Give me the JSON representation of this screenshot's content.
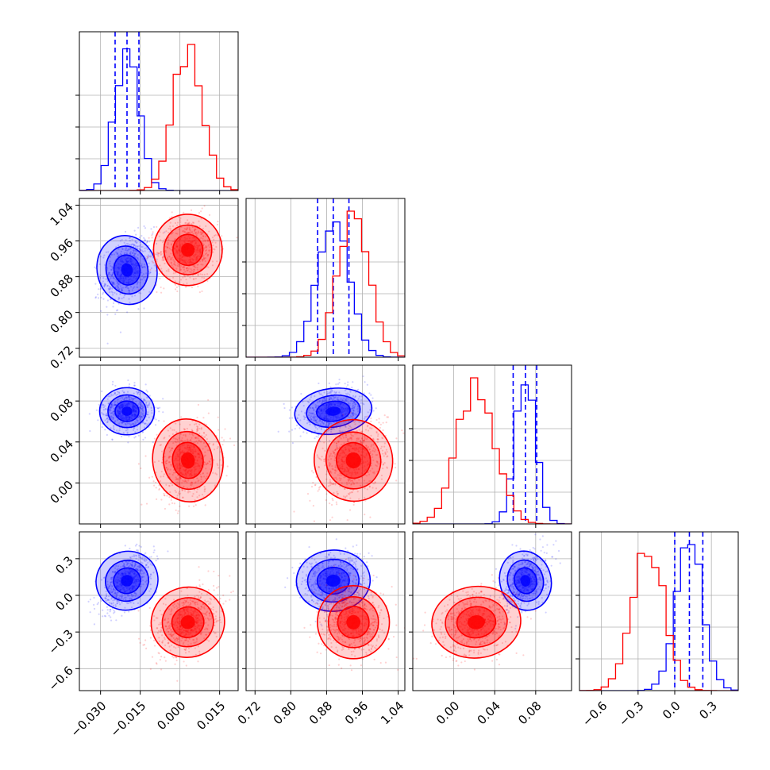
{
  "chart_data": {
    "type": "corner",
    "description_of_layout": "lower-triangular matrix of 4 parameters; diagonal panels are 1D histograms, off-diagonal panels are 2D scatter + filled density contours",
    "grid": true,
    "series": [
      {
        "name": "",
        "color": "#0000ff",
        "means": [
          -0.02,
          0.895,
          0.07,
          0.12
        ],
        "sigmas": [
          0.0045,
          0.035,
          0.01,
          0.11
        ],
        "correlations": {
          "0-1": 0.35,
          "0-2": 0.0,
          "0-3": 0.55,
          "1-2": 0.3,
          "1-3": 0.1,
          "2-3": 0.35
        },
        "quantile_lines": [
          [
            -0.0245,
            -0.02,
            -0.0155
          ],
          [
            0.86,
            0.895,
            0.93
          ],
          [
            0.058,
            0.07,
            0.081
          ],
          [
            0.0,
            0.12,
            0.23
          ]
        ]
      },
      {
        "name": "",
        "color": "#ff0000",
        "means": [
          0.003,
          0.94,
          0.022,
          -0.22
        ],
        "sigmas": [
          0.0055,
          0.035,
          0.018,
          0.13
        ],
        "correlations": {
          "0-1": 0.1,
          "0-2": 0.2,
          "0-3": 0.4,
          "1-2": 0.35,
          "1-3": 0.0,
          "2-3": 0.2
        },
        "quantile_lines": null
      }
    ],
    "axes": [
      {
        "range": [
          -0.038,
          0.022
        ],
        "ticks": [
          -0.03,
          -0.015,
          0.0,
          0.015
        ],
        "tick_labels": [
          "−0.030",
          "−0.015",
          "0.000",
          "0.015"
        ]
      },
      {
        "range": [
          0.7,
          1.055
        ],
        "ticks": [
          0.72,
          0.8,
          0.88,
          0.96,
          1.04
        ],
        "tick_labels": [
          "0.72",
          "0.80",
          "0.88",
          "0.96",
          "1.04"
        ]
      },
      {
        "range": [
          -0.04,
          0.115
        ],
        "ticks": [
          0.0,
          0.04,
          0.08
        ],
        "tick_labels": [
          "0.00",
          "0.04",
          "0.08"
        ]
      },
      {
        "range": [
          -0.78,
          0.52
        ],
        "ticks": [
          -0.6,
          -0.3,
          0.0,
          0.3
        ],
        "tick_labels": [
          "−0.6",
          "−0.3",
          "0.0",
          "0.3"
        ]
      }
    ]
  }
}
